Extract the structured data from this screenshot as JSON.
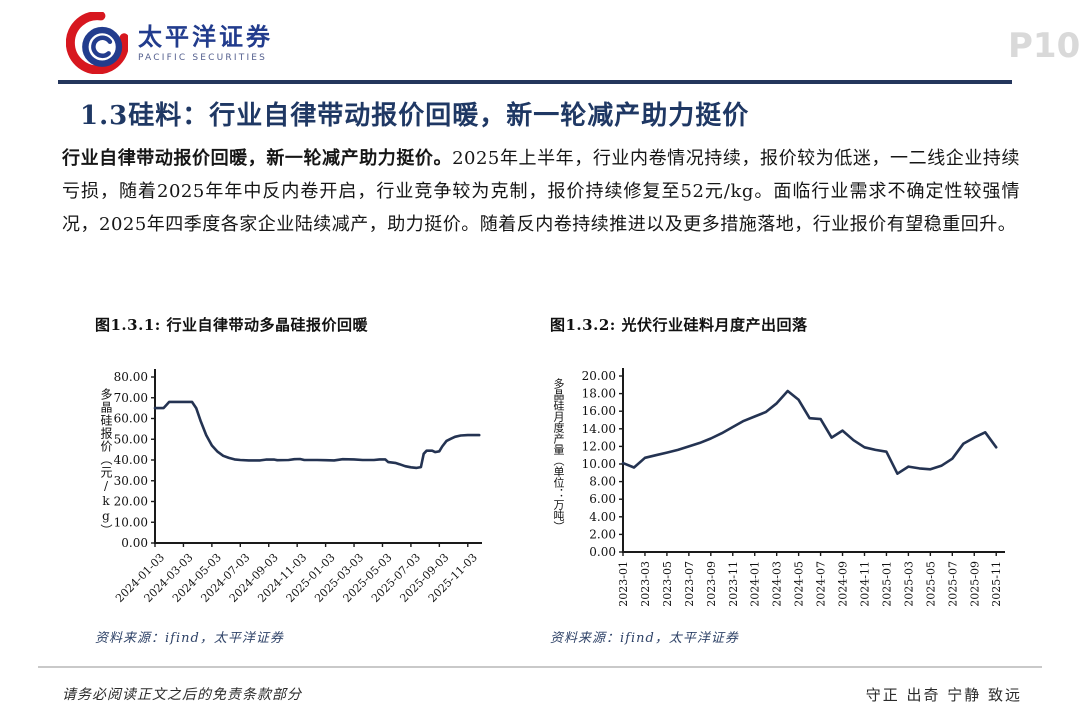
{
  "header": {
    "logo": {
      "cn": "太平洋证券",
      "en": "PACIFIC SECURITIES"
    },
    "page_number": "P10"
  },
  "title": "1.3硅料：行业自律带动报价回暖，新一轮减产助力挺价",
  "body": {
    "lead_bold": "行业自律带动报价回暖，新一轮减产助力挺价。",
    "text": "2025年上半年，行业内卷情况持续，报价较为低迷，一二线企业持续亏损，随着2025年年中反内卷开启，行业竞争较为克制，报价持续修复至52元/kg。面临行业需求不确定性较强情况，2025年四季度各家企业陆续减产，助力挺价。随着反内卷持续推进以及更多措施落地，行业报价有望稳重回升。"
  },
  "footer": {
    "disclaimer": "请务必阅读正文之后的免责条款部分",
    "motto": "守正 出奇 宁静 致远"
  },
  "chart_data": [
    {
      "type": "line",
      "title": "图1.3.1: 行业自律带动多晶硅报价回暖",
      "ylabel": "多晶硅报价（元/kg）",
      "xlabel": "",
      "source": "资料来源：ifind，太平洋证券",
      "line_color": "#243352",
      "ylim": [
        0,
        80
      ],
      "yticks": [
        0,
        10,
        20,
        30,
        40,
        50,
        60,
        70,
        80
      ],
      "x_range": [
        0,
        23
      ],
      "x_ticks": [
        "2024-01-03",
        "2024-03-03",
        "2024-05-03",
        "2024-07-03",
        "2024-09-03",
        "2024-11-03",
        "2025-01-03",
        "2025-03-03",
        "2025-05-03",
        "2025-07-03",
        "2025-09-03",
        "2025-11-03"
      ],
      "x_tick_pos": [
        0,
        2,
        4,
        6,
        8,
        10,
        12,
        14,
        16,
        18,
        20,
        22
      ],
      "grid": false,
      "legend": "none",
      "series": [
        {
          "name": "多晶硅报价",
          "points": [
            [
              0,
              65
            ],
            [
              0.6,
              65
            ],
            [
              0.8,
              66.5
            ],
            [
              1.0,
              68
            ],
            [
              2.6,
              68
            ],
            [
              2.9,
              65
            ],
            [
              3.2,
              59
            ],
            [
              3.6,
              52
            ],
            [
              4.0,
              47
            ],
            [
              4.4,
              44
            ],
            [
              4.8,
              42
            ],
            [
              5.2,
              41
            ],
            [
              5.6,
              40.3
            ],
            [
              6.0,
              40
            ],
            [
              6.6,
              39.8
            ],
            [
              7.4,
              39.8
            ],
            [
              7.8,
              40.2
            ],
            [
              8.4,
              40.2
            ],
            [
              8.6,
              39.9
            ],
            [
              9.4,
              40
            ],
            [
              9.8,
              40.4
            ],
            [
              10.2,
              40.5
            ],
            [
              10.5,
              40
            ],
            [
              11.4,
              40
            ],
            [
              12.0,
              39.9
            ],
            [
              12.6,
              39.8
            ],
            [
              13.2,
              40.4
            ],
            [
              14.0,
              40.3
            ],
            [
              14.6,
              40
            ],
            [
              15.4,
              40
            ],
            [
              15.8,
              40.3
            ],
            [
              16.2,
              40.3
            ],
            [
              16.4,
              39
            ],
            [
              16.9,
              38.6
            ],
            [
              17.2,
              38
            ],
            [
              17.6,
              37
            ],
            [
              18.0,
              36.5
            ],
            [
              18.4,
              36.2
            ],
            [
              18.7,
              36.6
            ],
            [
              18.9,
              43
            ],
            [
              19.1,
              44.5
            ],
            [
              19.5,
              44.5
            ],
            [
              19.7,
              43.8
            ],
            [
              20.0,
              44.2
            ],
            [
              20.2,
              46.5
            ],
            [
              20.5,
              49.2
            ],
            [
              20.8,
              50.2
            ],
            [
              21.1,
              51.2
            ],
            [
              21.5,
              51.8
            ],
            [
              22.0,
              52
            ],
            [
              22.8,
              52
            ]
          ]
        }
      ]
    },
    {
      "type": "line",
      "title": "图1.3.2: 光伏行业硅料月度产出回落",
      "ylabel": "多晶硅月度产量（单位：万吨）",
      "xlabel": "",
      "source": "资料来源：ifind，太平洋证券",
      "line_color": "#243352",
      "ylim": [
        0,
        20
      ],
      "yticks": [
        0,
        2,
        4,
        6,
        8,
        10,
        12,
        14,
        16,
        18,
        20
      ],
      "x_range": [
        0,
        34.8
      ],
      "x_ticks": [
        "2023-01",
        "2023-03",
        "2023-05",
        "2023-07",
        "2023-09",
        "2023-11",
        "2024-01",
        "2024-03",
        "2024-05",
        "2024-07",
        "2024-09",
        "2024-11",
        "2025-01",
        "2025-03",
        "2025-05",
        "2025-07",
        "2025-09",
        "2025-11"
      ],
      "x_tick_pos": [
        0,
        2,
        4,
        6,
        8,
        10,
        12,
        14,
        16,
        18,
        20,
        22,
        24,
        26,
        28,
        30,
        32,
        34
      ],
      "grid": false,
      "legend": "none",
      "series": [
        {
          "name": "多晶硅月度产量",
          "points": [
            [
              0,
              10.1
            ],
            [
              1,
              9.6
            ],
            [
              2,
              10.7
            ],
            [
              3,
              11.0
            ],
            [
              4,
              11.3
            ],
            [
              5,
              11.6
            ],
            [
              6,
              12.0
            ],
            [
              7,
              12.4
            ],
            [
              8,
              12.9
            ],
            [
              9,
              13.5
            ],
            [
              10,
              14.2
            ],
            [
              11,
              14.9
            ],
            [
              12,
              15.4
            ],
            [
              13,
              15.9
            ],
            [
              14,
              16.9
            ],
            [
              15,
              18.3
            ],
            [
              16,
              17.3
            ],
            [
              17,
              15.2
            ],
            [
              18,
              15.1
            ],
            [
              19,
              13.0
            ],
            [
              20,
              13.8
            ],
            [
              21,
              12.7
            ],
            [
              22,
              11.9
            ],
            [
              23,
              11.6
            ],
            [
              24,
              11.4
            ],
            [
              25,
              8.9
            ],
            [
              26,
              9.7
            ],
            [
              27,
              9.5
            ],
            [
              28,
              9.4
            ],
            [
              29,
              9.8
            ],
            [
              30,
              10.6
            ],
            [
              31,
              12.3
            ],
            [
              32,
              13.0
            ],
            [
              33,
              13.6
            ],
            [
              34,
              11.9
            ]
          ]
        }
      ]
    }
  ]
}
